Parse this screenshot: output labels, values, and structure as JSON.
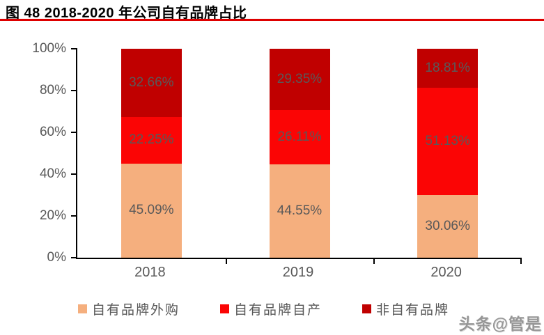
{
  "title": "图 48 2018-2020 年公司自有品牌占比",
  "watermark": "头条@管是",
  "colors": {
    "title_underline": "#DE0000",
    "axis": "#000000",
    "tick_label": "#595959",
    "data_label": "#595959",
    "series": [
      "#F5AF7E",
      "#FB0505",
      "#C00000"
    ]
  },
  "chart_data": {
    "type": "bar",
    "stacked": true,
    "title": "图 48 2018-2020 年公司自有品牌占比",
    "categories": [
      "2018",
      "2019",
      "2020"
    ],
    "series": [
      {
        "name": "自有品牌外购",
        "color": "#F5AF7E",
        "values": [
          45.09,
          44.55,
          30.06
        ]
      },
      {
        "name": "自有品牌自产",
        "color": "#FB0505",
        "values": [
          22.25,
          26.11,
          51.13
        ]
      },
      {
        "name": "非自有品牌",
        "color": "#C00000",
        "values": [
          32.66,
          29.35,
          18.81
        ]
      }
    ],
    "data_labels": [
      "45.09%",
      "44.55%",
      "30.06%",
      "22.25%",
      "26.11%",
      "51.13%",
      "32.66%",
      "29.35%",
      "18.81%"
    ],
    "xlabel": "",
    "ylabel": "",
    "ylim": [
      0,
      100
    ],
    "ytick_labels": [
      "0%",
      "20%",
      "40%",
      "60%",
      "80%",
      "100%"
    ],
    "grid": false,
    "legend_position": "bottom"
  }
}
